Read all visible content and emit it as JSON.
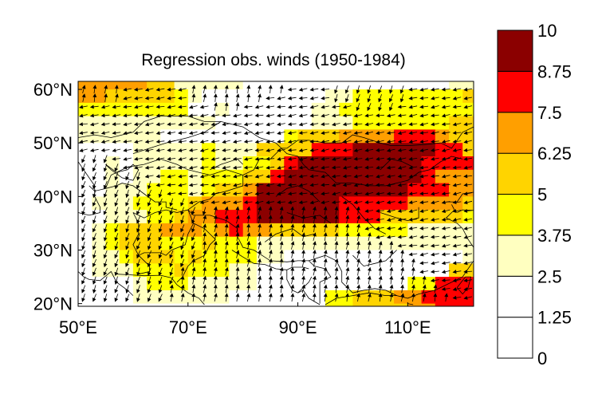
{
  "chart_data": {
    "type": "heatmap",
    "title": "Regression obs. winds (1950-1984)",
    "x_ticks": [
      "50°E",
      "70°E",
      "90°E",
      "110°E"
    ],
    "y_ticks": [
      "20°N",
      "30°N",
      "40°N",
      "50°N",
      "60°N"
    ],
    "xlim": [
      50,
      122
    ],
    "ylim": [
      19.5,
      61.5
    ],
    "colorbar": {
      "levels": [
        0,
        1.25,
        2.5,
        3.75,
        5,
        6.25,
        7.5,
        8.75,
        10
      ],
      "labels": [
        "0",
        "1.25",
        "2.5",
        "3.75",
        "5",
        "6.25",
        "7.5",
        "8.75",
        "10"
      ],
      "colors": [
        "#ffffff",
        "#ffffff",
        "#ffffc0",
        "#ffff00",
        "#ffd400",
        "#ff9f00",
        "#ff0000",
        "#8b0000"
      ]
    },
    "grid": {
      "lon_start": 50,
      "lon_step": 2.5,
      "lat_start": 60,
      "lat_step": -2.5
    },
    "cells": [
      "6666655333331112211122222223333333",
      "6655555432222112223344444444555555",
      "4444444422321112233444444444445555",
      "3333333333222211233344444445555555",
      "3333332221222224555666677765555555",
      "2222333334333555577788888877555555",
      "2232333334334457888888888777766555",
      "2232334434445578888888888766666666",
      "2233344434556888888888887776666666",
      "2333444456667888888777776666554444",
      "2233344566777888888777555555444444",
      "2345556665676655555444443333333332",
      "2345554445444333333333333333333333",
      "2334555454444332222222222222334444",
      "2333444544433111112111111125554444",
      "2222344433333111112111114477777777",
      "2222333333322111114455566777778888",
      "1111111111221111114455556677777777",
      "1111111111111111114445566666666666",
      "1111111111111111114444444444444444",
      "1111111111111111113334444444444444",
      "1111111111111111133334444444444444",
      "1111111111111112233333444444444444",
      "1111111111111222334444556667777755",
      "1111111111122233344444556777777777",
      "1111111111122233344445666677777777",
      "1111111111122234444455566777777777",
      "1111111111122234444555666777777775",
      "3311111111122234444556777777777775"
    ],
    "wind_directions_deg": {
      "description": "direction arrows point toward",
      "rows": [
        "nnnnwwwwwwnnnnnnnnnwwwwssssssswwwwww",
        "nnnnwwwwwwnnnnnnnwwwwwwssssssswwwwww",
        "wwwwwwwwwwwwnnnwwwwwwwwwwsssswwwwwww",
        "wwwwwwwwwwwwwwwwwwwwwwwwwwwwwwwwwwww",
        "wwwwwwwwwwwwwwwwwwwwwwwwwwwwwwwwwwww",
        "wwwwwwwwwwwwwwwwwwwwwwwwwwwwwwwwwwww",
        "wwwwwwwwwwwwwwwwwwwwwwwwwwwwwwwwwwww",
        "wwwwwwwwwwwwwwwwwwwwwwwwwwwwwwwwwwww",
        "ssswwwwwwwwwwwwwwwwwwwwwwwwwwwwwwwww",
        "sssswwwwwwwwwwwwwwwwwwwwwwwwwwwwwwww",
        "sssssswwwwwwwwwwwwwwwwwwwwwwwwwwwwww",
        "ssssssswwwwwwwwwwwwwwwwwwwwwwwwwwwww",
        "sssssssswwwwwwwwwwwwwwwwwwwwwwwwwwww",
        "sssssssssswwwwwwwwwwwwwwwwwwwwwwwwww",
        "ssssssssssssnnnnnnnnnnnnnnwwwwwwwwww",
        "sssssssssssnnnnnnnnnnnnnnnwwwwwwwwww",
        "sssssssssssnnnnnnnnnnnnnnnwwwwwwwwww",
        "sssssssssssnnnnnnnnnnnnnnnnwwwwwwwww",
        "sssssssssssnnnnnnnnnnnnnnnnnnwwwwwww",
        "sssssssssssnnnnnnnnnnnnnnnnnnnwwwwww",
        "ssssssssssnnnnnnnnnnnnnnnnnnnnnwwwww",
        "sssssssssnnnnnnnnnnnnnnnnnnnnnnwwwww",
        "sssssssssnnnnnnnnnnnnnnnnnnnnnnnwwww",
        "ssssssssnnnnnnnnnnnnnnnnnnnnnnnnnwww",
        "ssssssssnnnnnnnnnnnnnnnnnnnnnnnnnnww",
        "sssssssnnnnnnnnnnnnnnnnnnnnnnnnnnnnw"
      ],
      "codes": {
        "n": 80,
        "w": 190,
        "s": 250
      }
    }
  }
}
